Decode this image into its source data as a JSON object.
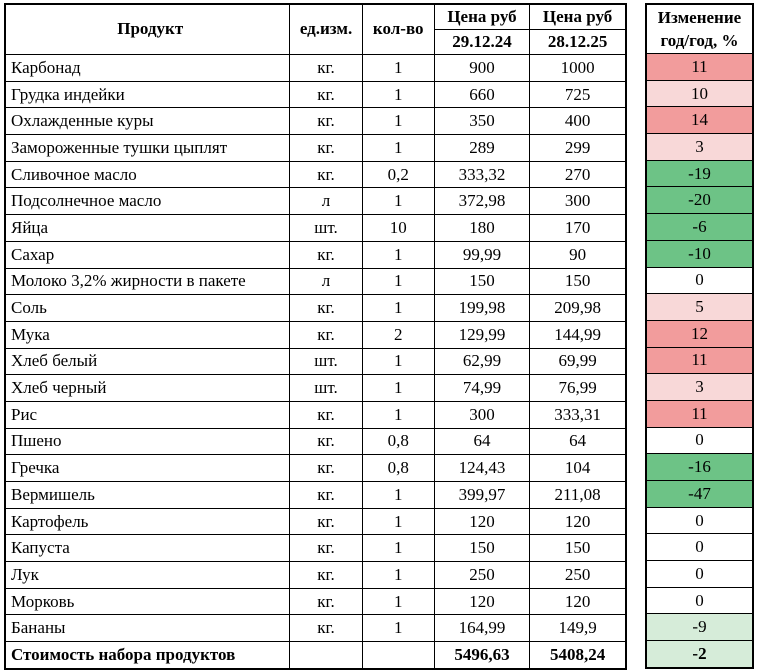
{
  "colors": {
    "up_strong": "#f29c9c",
    "up_light": "#f8d8d8",
    "down_strong": "#6dc386",
    "down_light": "#d6ecd9",
    "border": "#000000"
  },
  "table": {
    "headers": {
      "product": "Продукт",
      "unit": "ед.изм.",
      "qty": "кол-во",
      "price1_line1": "Цена руб",
      "price1_line2": "29.12.24",
      "price2_line1": "Цена руб",
      "price2_line2": "28.12.25",
      "change_line1": "Изменение",
      "change_line2": "год/год, %"
    },
    "rows": [
      {
        "product": "Карбонад",
        "unit": "кг.",
        "qty": "1",
        "p1": "900",
        "p2": "1000",
        "change": "11",
        "color": "up_strong"
      },
      {
        "product": "Грудка индейки",
        "unit": "кг.",
        "qty": "1",
        "p1": "660",
        "p2": "725",
        "change": "10",
        "color": "up_light"
      },
      {
        "product": "Охлажденные куры",
        "unit": "кг.",
        "qty": "1",
        "p1": "350",
        "p2": "400",
        "change": "14",
        "color": "up_strong"
      },
      {
        "product": "Замороженные тушки цыплят",
        "unit": "кг.",
        "qty": "1",
        "p1": "289",
        "p2": "299",
        "change": "3",
        "color": "up_light"
      },
      {
        "product": "Сливочное масло",
        "unit": "кг.",
        "qty": "0,2",
        "p1": "333,32",
        "p2": "270",
        "change": "-19",
        "color": "down_strong"
      },
      {
        "product": "Подсолнечное масло",
        "unit": "л",
        "qty": "1",
        "p1": "372,98",
        "p2": "300",
        "change": "-20",
        "color": "down_strong"
      },
      {
        "product": "Яйца",
        "unit": "шт.",
        "qty": "10",
        "p1": "180",
        "p2": "170",
        "change": "-6",
        "color": "down_strong"
      },
      {
        "product": "Сахар",
        "unit": "кг.",
        "qty": "1",
        "p1": "99,99",
        "p2": "90",
        "change": "-10",
        "color": "down_strong"
      },
      {
        "product": "Молоко 3,2% жирности в пакете",
        "unit": "л",
        "qty": "1",
        "p1": "150",
        "p2": "150",
        "change": "0",
        "color": "none"
      },
      {
        "product": "Соль",
        "unit": "кг.",
        "qty": "1",
        "p1": "199,98",
        "p2": "209,98",
        "change": "5",
        "color": "up_light"
      },
      {
        "product": "Мука",
        "unit": "кг.",
        "qty": "2",
        "p1": "129,99",
        "p2": "144,99",
        "change": "12",
        "color": "up_strong"
      },
      {
        "product": "Хлеб белый",
        "unit": "шт.",
        "qty": "1",
        "p1": "62,99",
        "p2": "69,99",
        "change": "11",
        "color": "up_strong"
      },
      {
        "product": "Хлеб черный",
        "unit": "шт.",
        "qty": "1",
        "p1": "74,99",
        "p2": "76,99",
        "change": "3",
        "color": "up_light"
      },
      {
        "product": "Рис",
        "unit": "кг.",
        "qty": "1",
        "p1": "300",
        "p2": "333,31",
        "change": "11",
        "color": "up_strong"
      },
      {
        "product": "Пшено",
        "unit": "кг.",
        "qty": "0,8",
        "p1": "64",
        "p2": "64",
        "change": "0",
        "color": "none"
      },
      {
        "product": "Гречка",
        "unit": "кг.",
        "qty": "0,8",
        "p1": "124,43",
        "p2": "104",
        "change": "-16",
        "color": "down_strong"
      },
      {
        "product": "Вермишель",
        "unit": "кг.",
        "qty": "1",
        "p1": "399,97",
        "p2": "211,08",
        "change": "-47",
        "color": "down_strong"
      },
      {
        "product": "Картофель",
        "unit": "кг.",
        "qty": "1",
        "p1": "120",
        "p2": "120",
        "change": "0",
        "color": "none"
      },
      {
        "product": "Капуста",
        "unit": "кг.",
        "qty": "1",
        "p1": "150",
        "p2": "150",
        "change": "0",
        "color": "none"
      },
      {
        "product": "Лук",
        "unit": "кг.",
        "qty": "1",
        "p1": "250",
        "p2": "250",
        "change": "0",
        "color": "none"
      },
      {
        "product": "Морковь",
        "unit": "кг.",
        "qty": "1",
        "p1": "120",
        "p2": "120",
        "change": "0",
        "color": "none"
      },
      {
        "product": "Бананы",
        "unit": "кг.",
        "qty": "1",
        "p1": "164,99",
        "p2": "149,9",
        "change": "-9",
        "color": "down_light"
      },
      {
        "product": "Стоимость набора продуктов",
        "unit": "",
        "qty": "",
        "p1": "5496,63",
        "p2": "5408,24",
        "change": "-2",
        "color": "down_light",
        "is_total": true
      }
    ]
  },
  "chart_data": {
    "type": "table",
    "title": "",
    "columns": [
      "Продукт",
      "ед.изм.",
      "кол-во",
      "Цена руб 29.12.24",
      "Цена руб 28.12.25",
      "Изменение год/год, %"
    ],
    "rows": [
      [
        "Карбонад",
        "кг.",
        1,
        900,
        1000,
        11
      ],
      [
        "Грудка индейки",
        "кг.",
        1,
        660,
        725,
        10
      ],
      [
        "Охлажденные куры",
        "кг.",
        1,
        350,
        400,
        14
      ],
      [
        "Замороженные тушки цыплят",
        "кг.",
        1,
        289,
        299,
        3
      ],
      [
        "Сливочное масло",
        "кг.",
        0.2,
        333.32,
        270,
        -19
      ],
      [
        "Подсолнечное масло",
        "л",
        1,
        372.98,
        300,
        -20
      ],
      [
        "Яйца",
        "шт.",
        10,
        180,
        170,
        -6
      ],
      [
        "Сахар",
        "кг.",
        1,
        99.99,
        90,
        -10
      ],
      [
        "Молоко 3,2% жирности в пакете",
        "л",
        1,
        150,
        150,
        0
      ],
      [
        "Соль",
        "кг.",
        1,
        199.98,
        209.98,
        5
      ],
      [
        "Мука",
        "кг.",
        2,
        129.99,
        144.99,
        12
      ],
      [
        "Хлеб белый",
        "шт.",
        1,
        62.99,
        69.99,
        11
      ],
      [
        "Хлеб черный",
        "шт.",
        1,
        74.99,
        76.99,
        3
      ],
      [
        "Рис",
        "кг.",
        1,
        300,
        333.31,
        11
      ],
      [
        "Пшено",
        "кг.",
        0.8,
        64,
        64,
        0
      ],
      [
        "Гречка",
        "кг.",
        0.8,
        124.43,
        104,
        -16
      ],
      [
        "Вермишель",
        "кг.",
        1,
        399.97,
        211.08,
        -47
      ],
      [
        "Картофель",
        "кг.",
        1,
        120,
        120,
        0
      ],
      [
        "Капуста",
        "кг.",
        1,
        150,
        150,
        0
      ],
      [
        "Лук",
        "кг.",
        1,
        250,
        250,
        0
      ],
      [
        "Морковь",
        "кг.",
        1,
        120,
        120,
        0
      ],
      [
        "Бананы",
        "кг.",
        1,
        164.99,
        149.9,
        -9
      ],
      [
        "Стоимость набора продуктов",
        "",
        "",
        5496.63,
        5408.24,
        -2
      ]
    ]
  }
}
